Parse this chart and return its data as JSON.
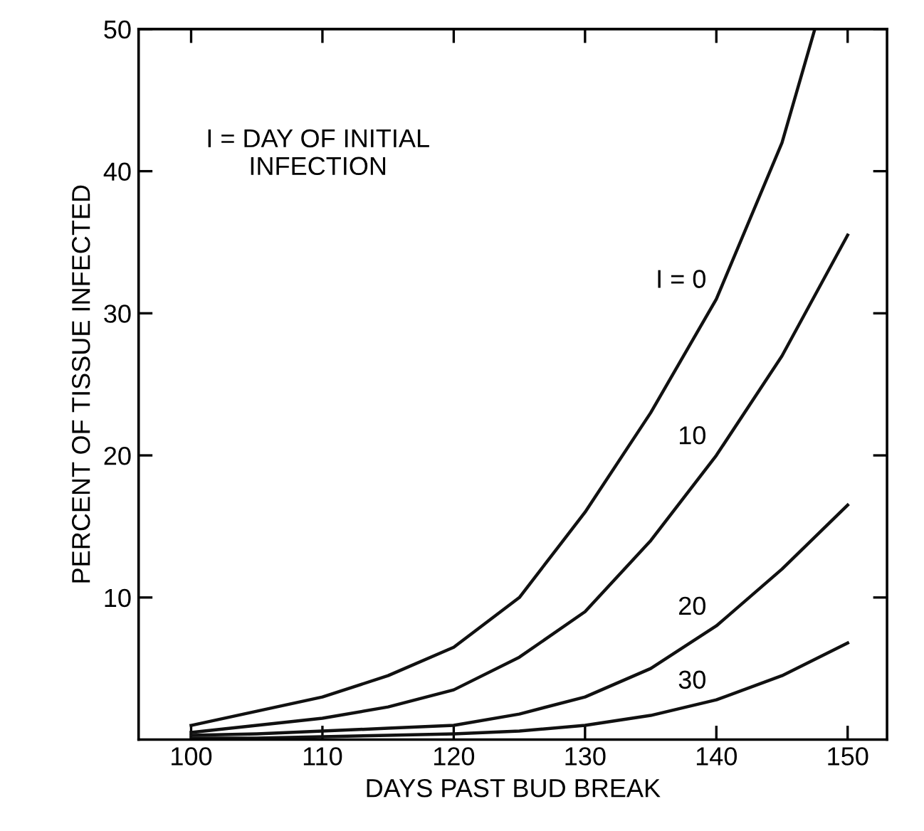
{
  "chart_data": {
    "type": "line",
    "xlabel": "DAYS PAST BUD BREAK",
    "ylabel": "PERCENT OF TISSUE INFECTED",
    "annotations": [
      "I = DAY OF INITIAL\nINFECTION"
    ],
    "xlim": [
      96,
      153
    ],
    "ylim": [
      0,
      50
    ],
    "xticks": [
      100,
      110,
      120,
      130,
      140,
      150
    ],
    "yticks": [
      10,
      20,
      30,
      40,
      50
    ],
    "grid": false,
    "legend": false,
    "marker": "none",
    "line_style": "solid",
    "series": [
      {
        "name": "I = 0",
        "color": "#111111",
        "x": [
          100,
          105,
          110,
          115,
          120,
          125,
          130,
          135,
          140,
          145,
          147.5
        ],
        "values": [
          1,
          2,
          3,
          4.5,
          6.5,
          10,
          16,
          23,
          31,
          42,
          50
        ]
      },
      {
        "name": "10",
        "color": "#111111",
        "x": [
          100,
          105,
          110,
          115,
          120,
          125,
          130,
          135,
          140,
          145,
          150
        ],
        "values": [
          0.5,
          1,
          1.5,
          2.3,
          3.5,
          5.8,
          9,
          14,
          20,
          27,
          35.5
        ]
      },
      {
        "name": "20",
        "color": "#111111",
        "x": [
          100,
          105,
          110,
          115,
          120,
          125,
          130,
          135,
          140,
          145,
          150
        ],
        "values": [
          0.3,
          0.4,
          0.6,
          0.8,
          1,
          1.8,
          3,
          5,
          8,
          12,
          16.5
        ]
      },
      {
        "name": "30",
        "color": "#111111",
        "x": [
          100,
          105,
          110,
          115,
          120,
          125,
          130,
          135,
          140,
          145,
          150
        ],
        "values": [
          0.1,
          0.1,
          0.2,
          0.3,
          0.4,
          0.6,
          1,
          1.7,
          2.8,
          4.5,
          6.8
        ]
      }
    ]
  }
}
